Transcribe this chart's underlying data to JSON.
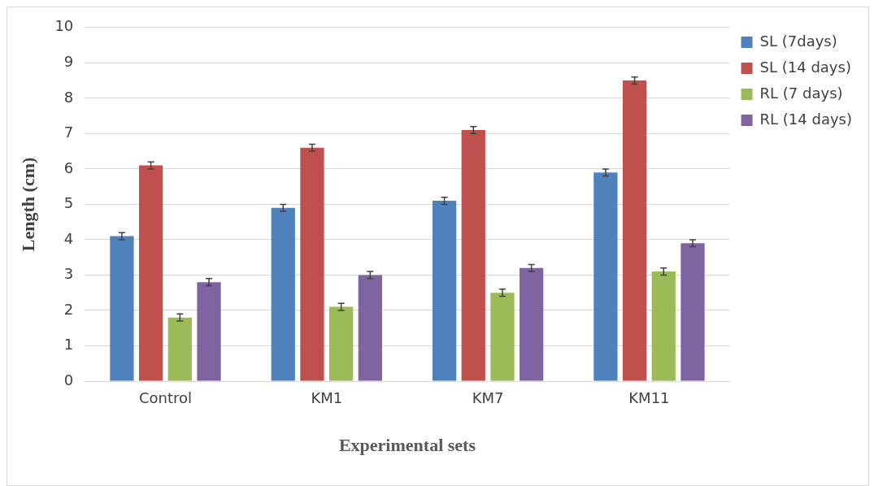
{
  "chart_data": {
    "type": "bar",
    "xlabel": "Experimental sets",
    "ylabel": "Length (cm)",
    "categories": [
      "Control",
      "KM1",
      "KM7",
      "KM11"
    ],
    "series": [
      {
        "name": "SL (7days)",
        "color": "#4f81bd",
        "values": [
          4.1,
          4.9,
          5.1,
          5.9
        ],
        "errors": [
          0.1,
          0.1,
          0.1,
          0.1
        ]
      },
      {
        "name": "SL (14 days)",
        "color": "#c0504d",
        "values": [
          6.1,
          6.6,
          7.1,
          8.5
        ],
        "errors": [
          0.1,
          0.1,
          0.1,
          0.1
        ]
      },
      {
        "name": "RL (7 days)",
        "color": "#9bbb59",
        "values": [
          1.8,
          2.1,
          2.5,
          3.1
        ],
        "errors": [
          0.1,
          0.1,
          0.1,
          0.1
        ]
      },
      {
        "name": "RL (14 days)",
        "color": "#8064a2",
        "values": [
          2.8,
          3.0,
          3.2,
          3.9
        ],
        "errors": [
          0.1,
          0.1,
          0.1,
          0.1
        ]
      }
    ],
    "ylim": [
      0,
      10
    ],
    "yticks": [
      0,
      1,
      2,
      3,
      4,
      5,
      6,
      7,
      8,
      9,
      10
    ],
    "grid": "y",
    "legend": "top right"
  }
}
